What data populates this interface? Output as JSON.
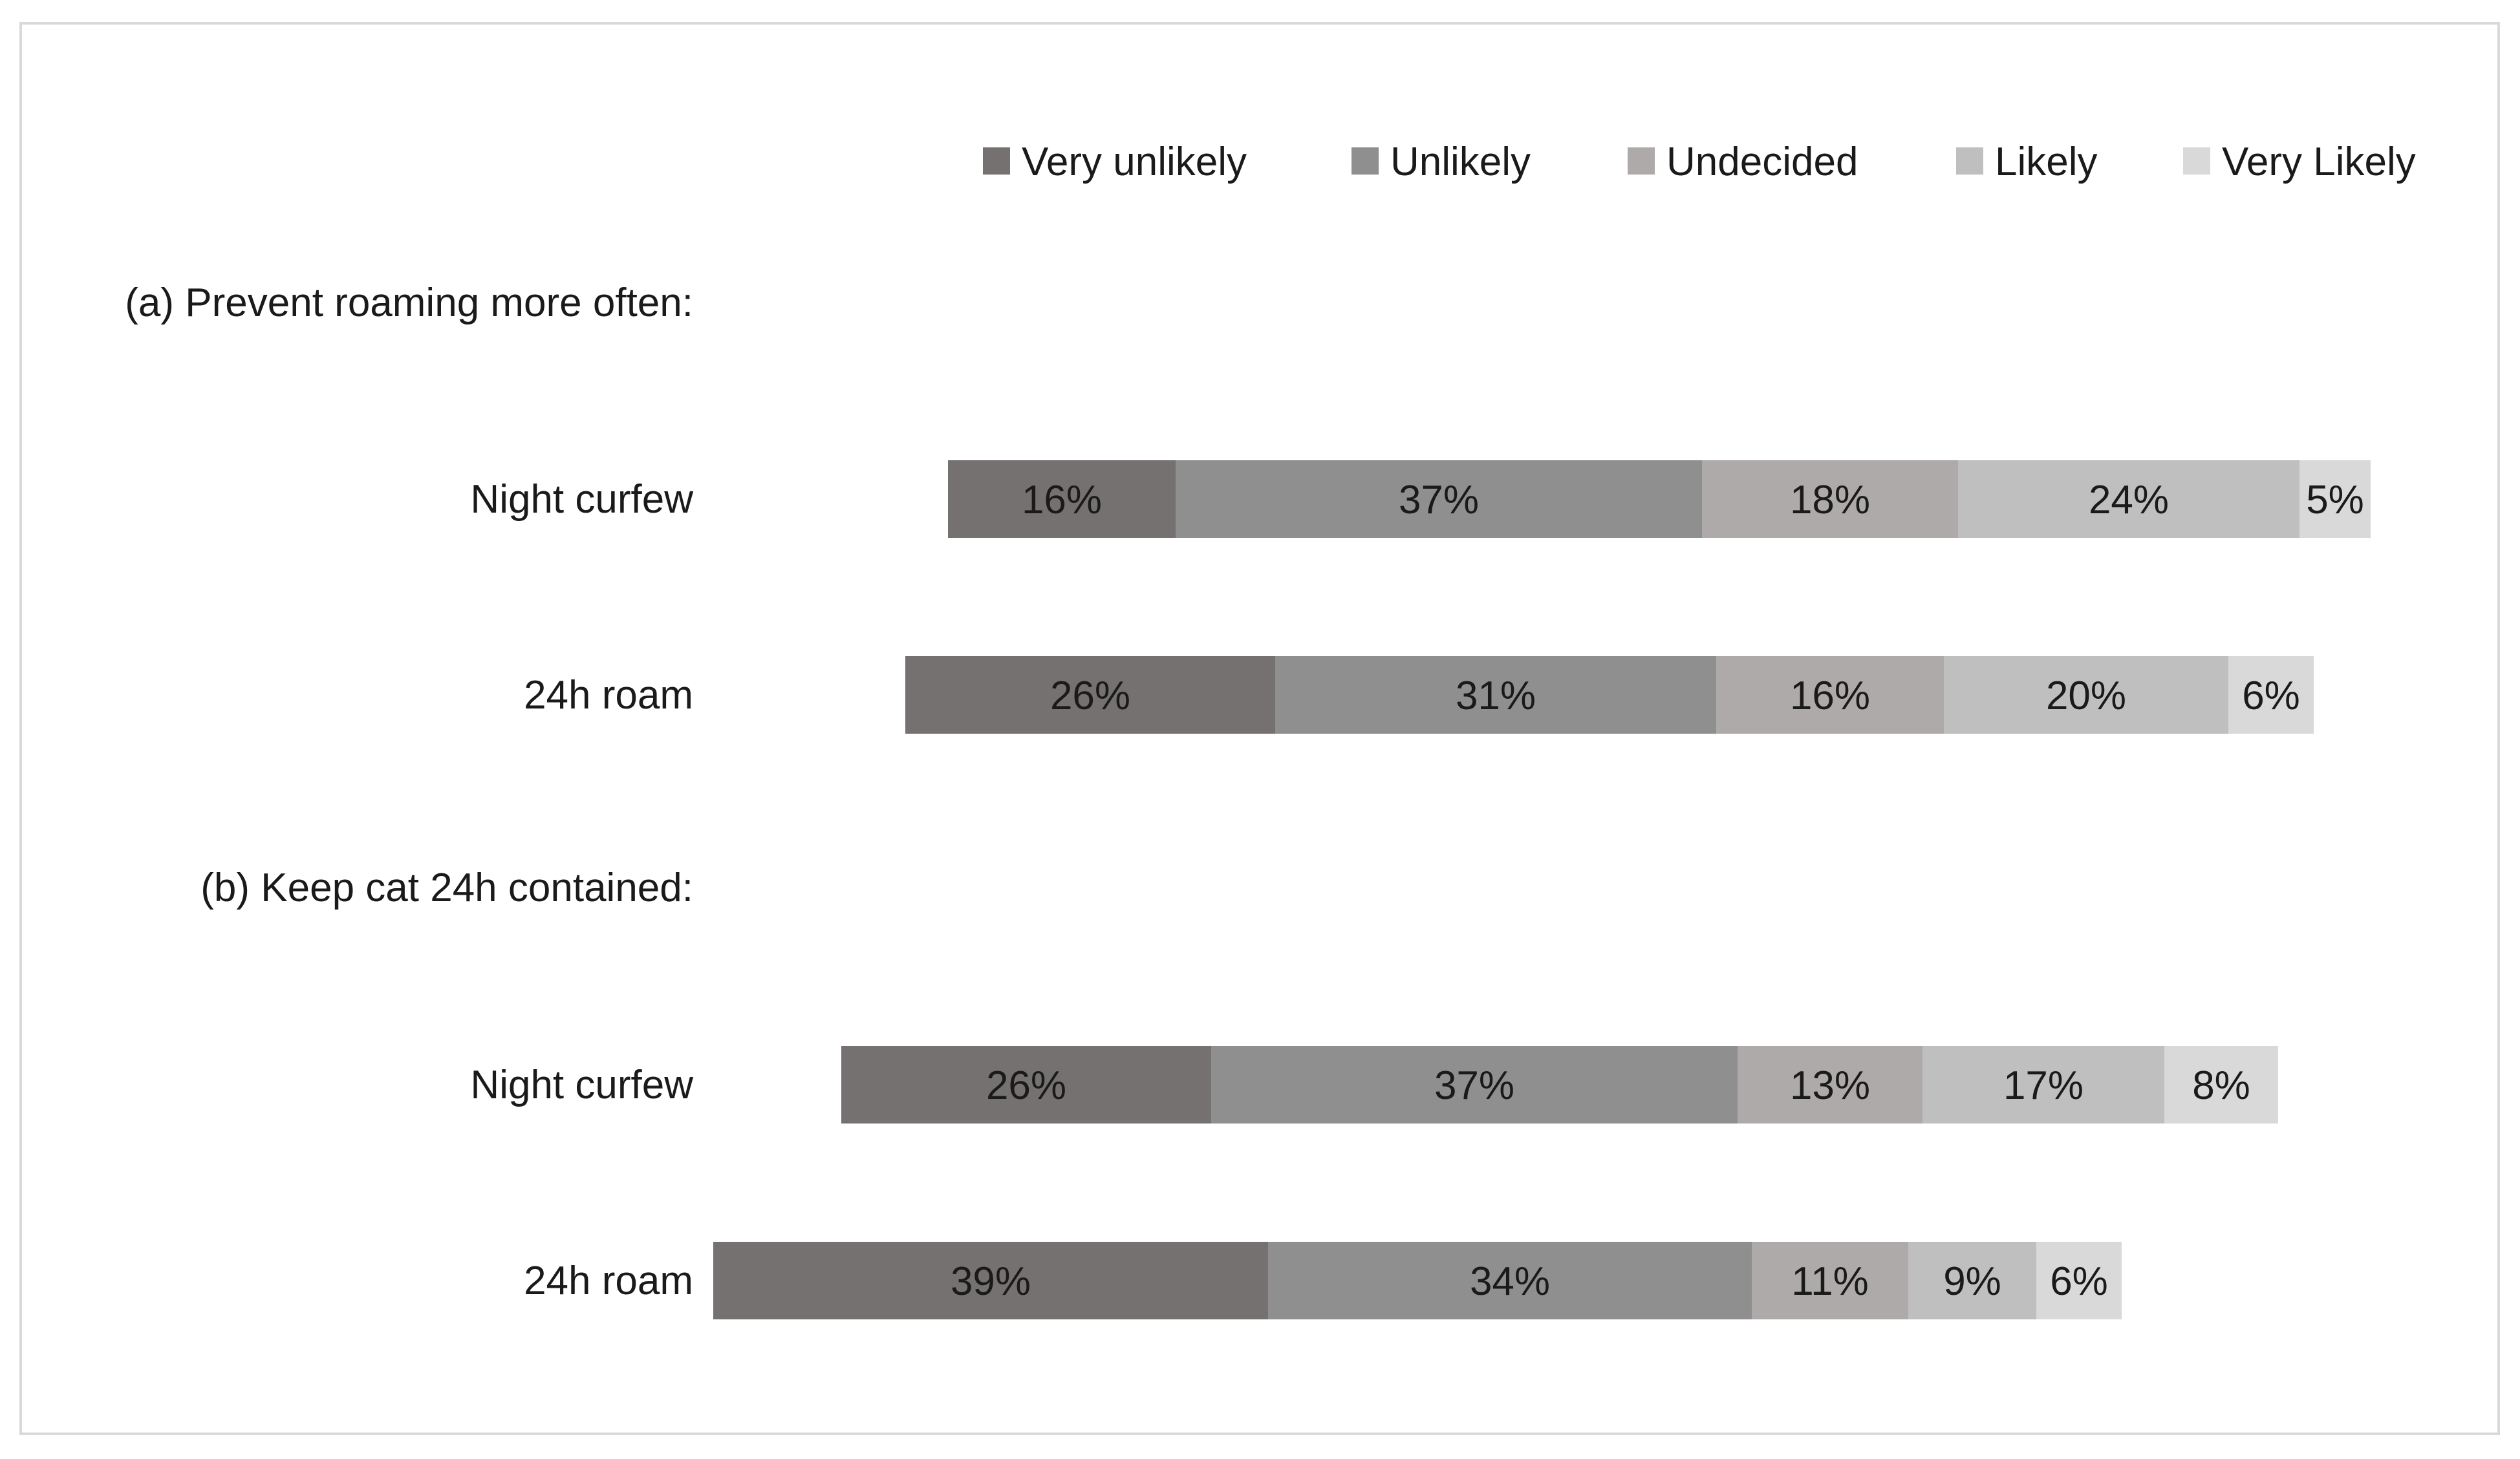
{
  "chart_data": {
    "type": "bar",
    "orientation": "horizontal",
    "stacked": true,
    "diverging": true,
    "legend_position": "top",
    "grid": false,
    "legend": [
      {
        "name": "Very unlikely",
        "color": "#767171"
      },
      {
        "name": "Unlikely",
        "color": "#8f8f8f"
      },
      {
        "name": "Undecided",
        "color": "#aeaaaa"
      },
      {
        "name": "Likely",
        "color": "#bfbfbf"
      },
      {
        "name": "Very Likely",
        "color": "#d9d9d9"
      }
    ],
    "groups": [
      {
        "label": "(a) Prevent roaming more often:",
        "rows": [
          {
            "label": "Night curfew",
            "values": [
              16,
              37,
              18,
              24,
              5
            ],
            "value_labels": [
              "16%",
              "37%",
              "18%",
              "24%",
              "5%"
            ]
          },
          {
            "label": "24h roam",
            "values": [
              26,
              31,
              16,
              20,
              6
            ],
            "value_labels": [
              "26%",
              "31%",
              "16%",
              "20%",
              "6%"
            ]
          }
        ]
      },
      {
        "label": "(b) Keep cat 24h contained:",
        "rows": [
          {
            "label": "Night curfew",
            "values": [
              26,
              37,
              13,
              17,
              8
            ],
            "value_labels": [
              "26%",
              "37%",
              "13%",
              "17%",
              "8%"
            ]
          },
          {
            "label": "24h roam",
            "values": [
              39,
              34,
              11,
              9,
              6
            ],
            "value_labels": [
              "39%",
              "34%",
              "11%",
              "9%",
              "6%"
            ]
          }
        ]
      }
    ]
  }
}
